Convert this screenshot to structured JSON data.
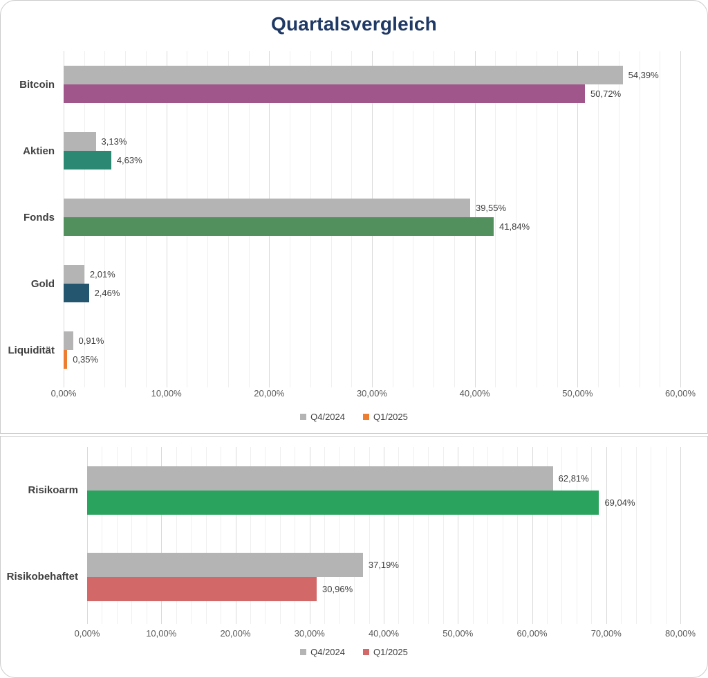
{
  "title": "Quartalsvergleich",
  "colors": {
    "title": "#1f3864",
    "q4_gray": "#b4b4b4",
    "bitcoin_purple": "#a0568a",
    "aktien_teal": "#2b8973",
    "fonds_green": "#52915d",
    "gold_navy": "#24566f",
    "liquiditaet_orange": "#ed7d31",
    "risikoarm_green": "#2aa35e",
    "risikobehaftet_red": "#d26868"
  },
  "chart_data": [
    {
      "type": "bar",
      "orientation": "horizontal",
      "title": "Quartalsvergleich",
      "categories": [
        "Bitcoin",
        "Aktien",
        "Fonds",
        "Gold",
        "Liquidität"
      ],
      "series": [
        {
          "name": "Q4/2024",
          "color": "#b4b4b4",
          "values": [
            54.39,
            3.13,
            39.55,
            2.01,
            0.91
          ],
          "labels": [
            "54,39%",
            "3,13%",
            "39,55%",
            "2,01%",
            "0,91%"
          ]
        },
        {
          "name": "Q1/2025",
          "legend_color": "#ed7d31",
          "colors": [
            "#a0568a",
            "#2b8973",
            "#52915d",
            "#24566f",
            "#ed7d31"
          ],
          "values": [
            50.72,
            4.63,
            41.84,
            2.46,
            0.35
          ],
          "labels": [
            "50,72%",
            "4,63%",
            "41,84%",
            "2,46%",
            "0,35%"
          ]
        }
      ],
      "xlim": [
        0,
        60
      ],
      "tick_step": 10,
      "minor_step": 2,
      "tick_labels": [
        "0,00%",
        "10,00%",
        "20,00%",
        "30,00%",
        "40,00%",
        "50,00%",
        "60,00%"
      ],
      "legend": [
        "Q4/2024",
        "Q1/2025"
      ],
      "legend_position": "bottom",
      "grid": true
    },
    {
      "type": "bar",
      "orientation": "horizontal",
      "categories": [
        "Risikoarm",
        "Risikobehaftet"
      ],
      "series": [
        {
          "name": "Q4/2024",
          "color": "#b4b4b4",
          "values": [
            62.81,
            37.19
          ],
          "labels": [
            "62,81%",
            "37,19%"
          ]
        },
        {
          "name": "Q1/2025",
          "legend_color": "#d26868",
          "colors": [
            "#2aa35e",
            "#d26868"
          ],
          "values": [
            69.04,
            30.96
          ],
          "labels": [
            "69,04%",
            "30,96%"
          ]
        }
      ],
      "xlim": [
        0,
        80
      ],
      "tick_step": 10,
      "minor_step": 2,
      "tick_labels": [
        "0,00%",
        "10,00%",
        "20,00%",
        "30,00%",
        "40,00%",
        "50,00%",
        "60,00%",
        "70,00%",
        "80,00%"
      ],
      "legend": [
        "Q4/2024",
        "Q1/2025"
      ],
      "legend_position": "bottom",
      "grid": true
    }
  ]
}
